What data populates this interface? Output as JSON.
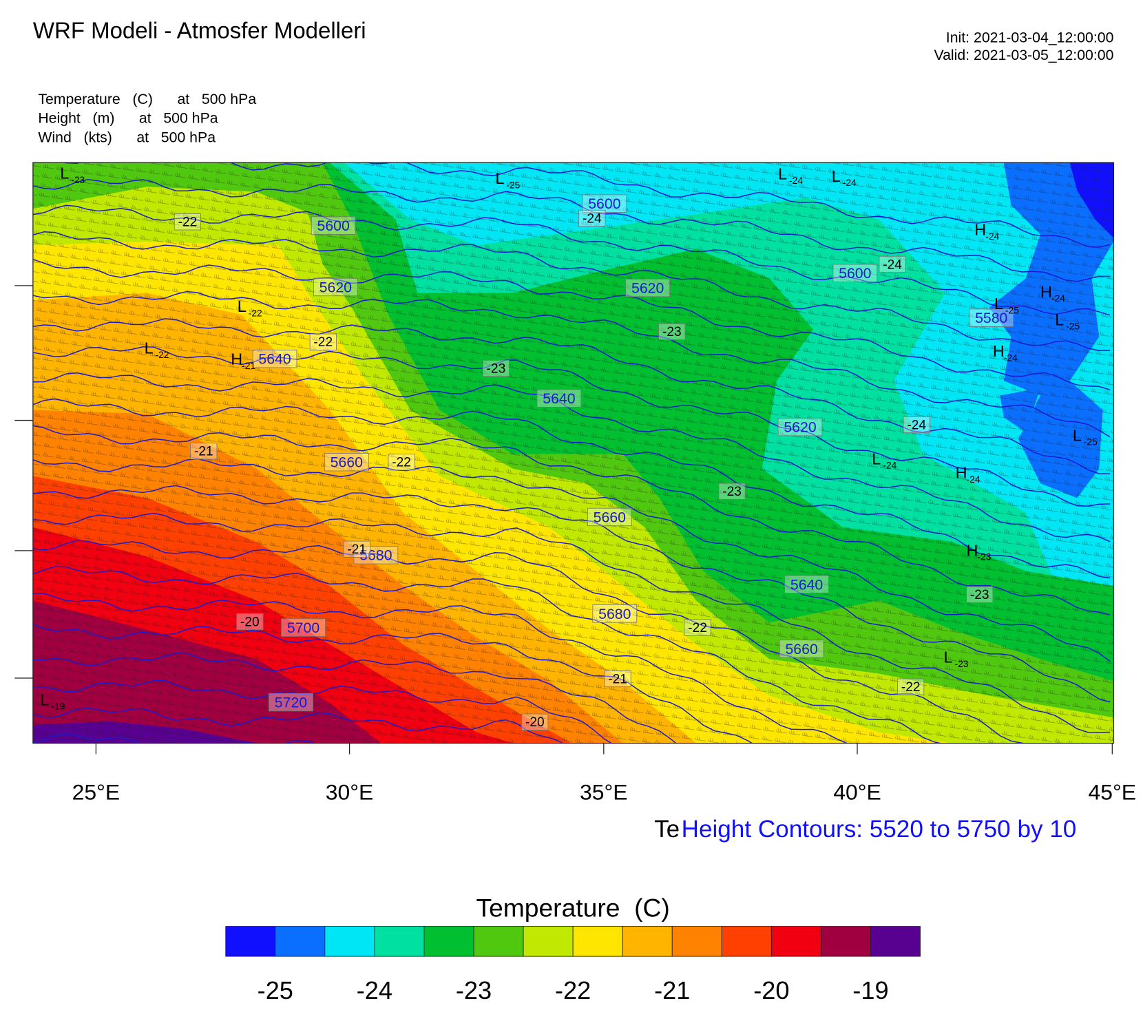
{
  "header": {
    "title": "WRF Modeli - Atmosfer Modelleri",
    "init": "Init: 2021-03-04_12:00:00",
    "valid": "Valid: 2021-03-05_12:00:00"
  },
  "fields": [
    "Temperature   (C)      at   500 hPa",
    "Height   (m)      at   500 hPa",
    "Wind   (kts)      at   500 hPa"
  ],
  "map": {
    "lon_ticks": [
      "25°E",
      "30°E",
      "35°E",
      "40°E",
      "45°E"
    ],
    "height_labels": [
      5600,
      5600,
      5600,
      5620,
      5620,
      5620,
      5640,
      5640,
      5640,
      5660,
      5660,
      5660,
      5680,
      5680,
      5700,
      5720,
      5580
    ],
    "temperature_labels": [
      -22,
      -24,
      -24,
      -23,
      -22,
      -23,
      -24,
      -21,
      -22,
      -23,
      -21,
      -20,
      -22,
      -23,
      -21,
      -22,
      -20
    ],
    "centers": [
      {
        "letter": "L",
        "value": -23
      },
      {
        "letter": "L",
        "value": -25
      },
      {
        "letter": "L",
        "value": -24
      },
      {
        "letter": "L",
        "value": -24
      },
      {
        "letter": "H",
        "value": -24
      },
      {
        "letter": "L",
        "value": -22
      },
      {
        "letter": "H",
        "value": -24
      },
      {
        "letter": "L",
        "value": -25
      },
      {
        "letter": "L",
        "value": -25
      },
      {
        "letter": "L",
        "value": -22
      },
      {
        "letter": "H",
        "value": -21
      },
      {
        "letter": "H",
        "value": -24
      },
      {
        "letter": "L",
        "value": -25
      },
      {
        "letter": "L",
        "value": -24
      },
      {
        "letter": "H",
        "value": -24
      },
      {
        "letter": "H",
        "value": -23
      },
      {
        "letter": "L",
        "value": -23
      },
      {
        "letter": "L",
        "value": -19
      }
    ]
  },
  "footer": {
    "hidden": "Te",
    "contours": "Height Contours: 5520 to 5750 by 10"
  },
  "colorbar": {
    "title": "Temperature  (C)",
    "colors": [
      "#1010ff",
      "#0a6eff",
      "#00e6f4",
      "#00e0a0",
      "#00bf30",
      "#50c810",
      "#c0e800",
      "#ffe600",
      "#ffb400",
      "#ff8200",
      "#ff4000",
      "#f00010",
      "#a00040",
      "#580090"
    ],
    "ticks": [
      -25,
      -24,
      -23,
      -22,
      -21,
      -20,
      -19
    ]
  }
}
